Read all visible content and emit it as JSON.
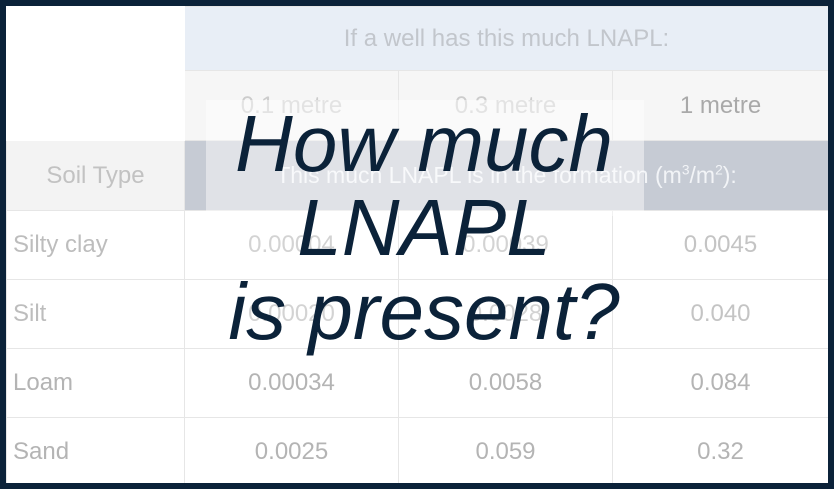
{
  "table": {
    "header_top": "If a well has this much LNAPL:",
    "amounts": [
      "0.1 metre",
      "0.3 metre",
      "1 metre"
    ],
    "soil_type_label": "Soil Type",
    "sub_header": {
      "text": "This much LNAPL is in the formation (m",
      "sup1": "3",
      "mid": "/m",
      "sup2": "2",
      "end": "):"
    },
    "rows": [
      {
        "soil": "Silty clay",
        "values": [
          "0.00004",
          "0.00039",
          "0.0045"
        ]
      },
      {
        "soil": "Silt",
        "values": [
          "0.00020",
          "0.0028",
          "0.040"
        ]
      },
      {
        "soil": "Loam",
        "values": [
          "0.00034",
          "0.0058",
          "0.084"
        ]
      },
      {
        "soil": "Sand",
        "values": [
          "0.0025",
          "0.059",
          "0.32"
        ]
      }
    ]
  },
  "overlay": {
    "lines": [
      "How much",
      "LNAPL",
      "is present?"
    ],
    "color": "#0b2239"
  },
  "colors": {
    "frame": "#0b2239",
    "header_top_bg": "#e8eef6",
    "sub_header_bg": "#c6cbd4"
  }
}
